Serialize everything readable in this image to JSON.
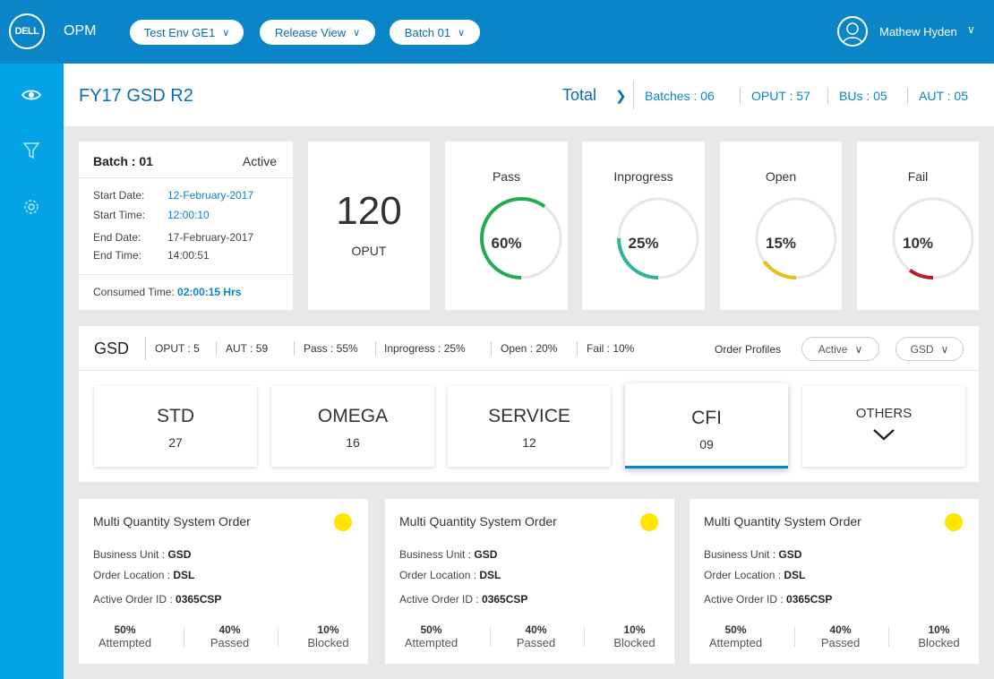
{
  "topbar": {
    "logo_text": "DELL",
    "app_name": "OPM",
    "pills": [
      {
        "label": "Test Env GE1"
      },
      {
        "label": "Release View"
      },
      {
        "label": "Batch 01"
      }
    ],
    "user_name": "Mathew Hyden"
  },
  "sidebar": {
    "items": [
      {
        "icon": "eye-icon"
      },
      {
        "icon": "filter-icon"
      },
      {
        "icon": "gear-icon"
      }
    ]
  },
  "header": {
    "title": "FY17 GSD R2",
    "total_label": "Total",
    "stats": [
      "Batches : 06",
      "OPUT : 57",
      "BUs : 05",
      "AUT : 05"
    ]
  },
  "batch": {
    "title": "Batch : 01",
    "status": "Active",
    "start_date_label": "Start Date:",
    "start_date": "12-February-2017",
    "start_time_label": "Start Time:",
    "start_time": "12:00:10",
    "end_date_label": "End Date:",
    "end_date": "17-February-2017",
    "end_time_label": "End Time:",
    "end_time": "14:00:51",
    "consumed_label": "Consumed Time:",
    "consumed_value": "02:00:15 Hrs"
  },
  "oput": {
    "value": "120",
    "label": "OPUT"
  },
  "status_cards": [
    {
      "title": "Pass",
      "value": "60%",
      "fraction": 0.6,
      "color": "#1fae4f"
    },
    {
      "title": "Inprogress",
      "value": "25%",
      "fraction": 0.25,
      "color": "#2bb59b"
    },
    {
      "title": "Open",
      "value": "15%",
      "fraction": 0.15,
      "color": "#e3c21b"
    },
    {
      "title": "Fail",
      "value": "10%",
      "fraction": 0.1,
      "color": "#b3202e"
    }
  ],
  "gsd": {
    "title": "GSD",
    "stats": [
      "OPUT : 5",
      "AUT : 59",
      "Pass : 55%",
      "Inprogress : 25%",
      "Open : 20%",
      "Fail : 10%"
    ],
    "order_profiles_label": "Order Profiles",
    "profile_select": "Active",
    "bu_select": "GSD",
    "categories": [
      {
        "name": "STD",
        "count": "27"
      },
      {
        "name": "OMEGA",
        "count": "16"
      },
      {
        "name": "SERVICE",
        "count": "12"
      },
      {
        "name": "CFI",
        "count": "09"
      },
      {
        "name": "OTHERS",
        "count": ""
      }
    ]
  },
  "orders": [
    {
      "title": "Multi Quantity System Order",
      "bu_label": "Business Unit :",
      "bu": "GSD",
      "loc_label": "Order Location :",
      "loc": "DSL",
      "id_label": "Active Order ID :",
      "id": "0365CSP",
      "metrics": [
        {
          "pct": "50%",
          "label": "Attempted"
        },
        {
          "pct": "40%",
          "label": "Passed"
        },
        {
          "pct": "10%",
          "label": "Blocked"
        }
      ]
    },
    {
      "title": "Multi Quantity System Order",
      "bu_label": "Business Unit :",
      "bu": "GSD",
      "loc_label": "Order Location :",
      "loc": "DSL",
      "id_label": "Active Order ID :",
      "id": "0365CSP",
      "metrics": [
        {
          "pct": "50%",
          "label": "Attempted"
        },
        {
          "pct": "40%",
          "label": "Passed"
        },
        {
          "pct": "10%",
          "label": "Blocked"
        }
      ]
    },
    {
      "title": "Multi Quantity System Order",
      "bu_label": "Business Unit :",
      "bu": "GSD",
      "loc_label": "Order Location :",
      "loc": "DSL",
      "id_label": "Active Order ID :",
      "id": "0365CSP",
      "metrics": [
        {
          "pct": "50%",
          "label": "Attempted"
        },
        {
          "pct": "40%",
          "label": "Passed"
        },
        {
          "pct": "10%",
          "label": "Blocked"
        }
      ]
    }
  ]
}
